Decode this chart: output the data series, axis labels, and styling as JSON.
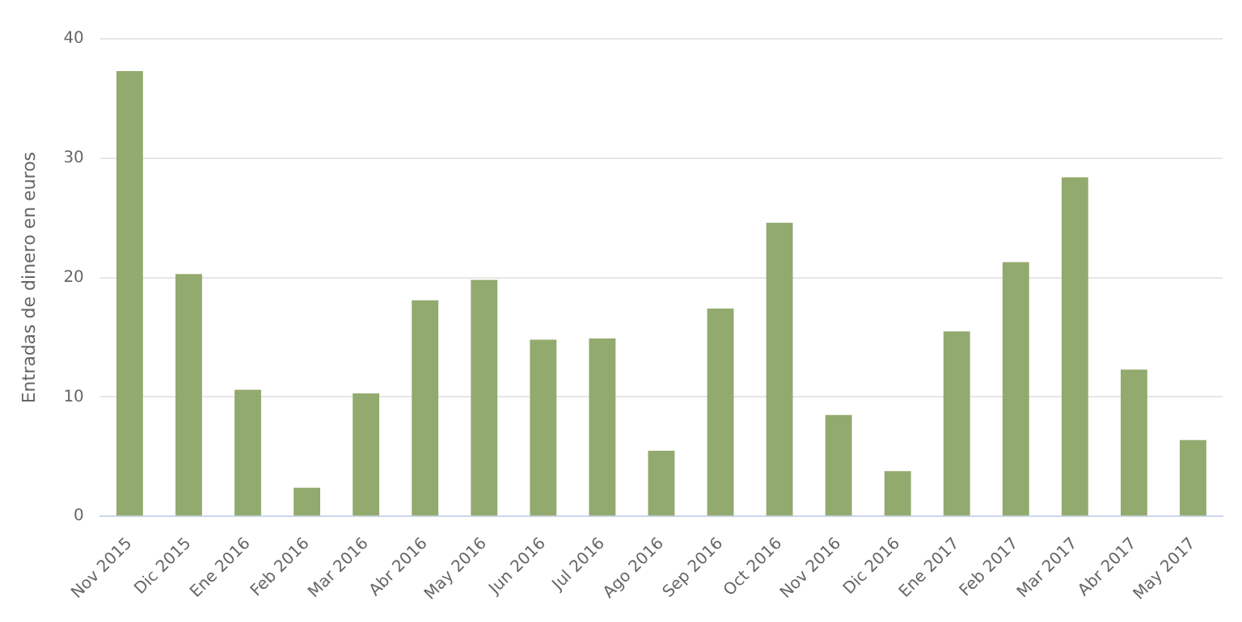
{
  "chart_data": {
    "type": "bar",
    "ylabel": "Entradas de dinero en euros",
    "categories": [
      "Nov 2015",
      "Dic 2015",
      "Ene 2016",
      "Feb 2016",
      "Mar 2016",
      "Abr 2016",
      "May 2016",
      "Jun 2016",
      "Jul 2016",
      "Ago 2016",
      "Sep 2016",
      "Oct 2016",
      "Nov 2016",
      "Dic 2016",
      "Ene 2017",
      "Feb 2017",
      "Mar 2017",
      "Abr 2017",
      "May 2017"
    ],
    "values": [
      37.3,
      20.3,
      10.6,
      2.4,
      10.3,
      18.1,
      19.8,
      14.8,
      14.9,
      5.5,
      17.4,
      24.6,
      8.5,
      3.8,
      15.5,
      21.3,
      28.4,
      12.3,
      6.4
    ],
    "color": "#93aa6f",
    "ylim": [
      0,
      40
    ],
    "yticks": [
      0,
      10,
      20,
      30,
      40
    ],
    "grid": "y",
    "legend": false
  }
}
